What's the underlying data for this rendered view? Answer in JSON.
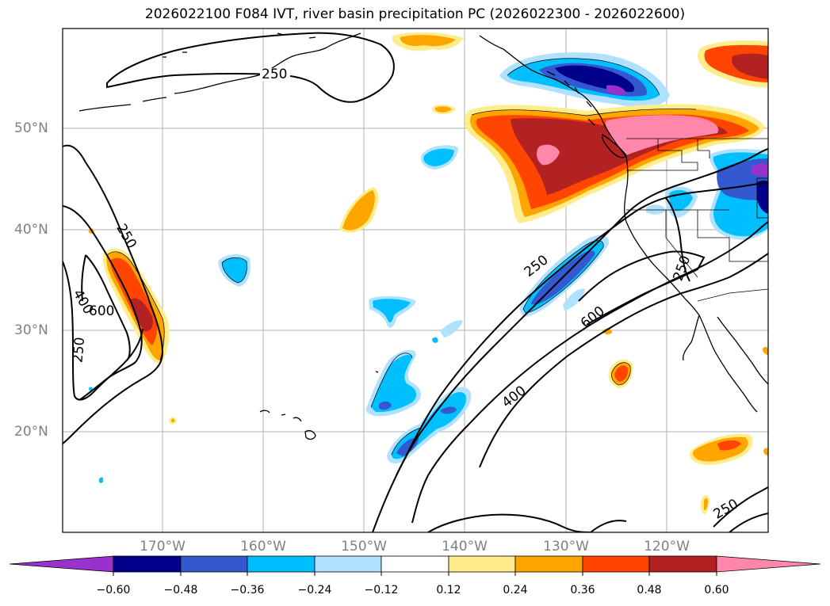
{
  "title": "2026022100 F084 IVT, river basin precipitation PC (2026022300 - 2026022600)",
  "map": {
    "lat_labels": [
      "50°N",
      "40°N",
      "30°N",
      "20°N"
    ],
    "lon_labels": [
      "170°W",
      "160°W",
      "150°W",
      "140°W",
      "130°W",
      "120°W"
    ],
    "contour_labels": [
      "250",
      "250",
      "400",
      "600",
      "250",
      "250",
      "600",
      "400",
      "250",
      "250"
    ]
  },
  "colorbar": {
    "ticks": [
      "−0.60",
      "−0.48",
      "−0.36",
      "−0.24",
      "−0.12",
      "0.12",
      "0.24",
      "0.36",
      "0.48",
      "0.60"
    ],
    "colors": [
      "#9932cc",
      "#00008b",
      "#3358cf",
      "#00bfff",
      "#b0e2ff",
      "#ffffff",
      "#ffec8b",
      "#ffa500",
      "#ff4500",
      "#b22222",
      "#ff88aa"
    ]
  }
}
